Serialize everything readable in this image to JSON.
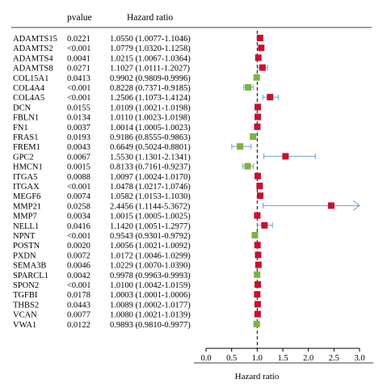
{
  "headers": {
    "pvalue": "pvalue",
    "hazard_ratio": "Hazard ratio"
  },
  "colors": {
    "risk": "#c8102e",
    "protective": "#7cb342",
    "ci_line": "#6a9fd0",
    "axis": "#000000",
    "refline": "#000000"
  },
  "chart_data": {
    "type": "forest",
    "xlabel": "Hazard ratio",
    "xlim": [
      0.0,
      3.0
    ],
    "xticks": [
      "0.0",
      "0.5",
      "1.0",
      "1.5",
      "2.0",
      "2.5",
      "3.0"
    ],
    "reference_line": 1.0,
    "rows": [
      {
        "gene": "ADAMTS15",
        "pvalue": "0.0221",
        "hr_text": "1.0550 (1.0077-1.1046)",
        "hr": 1.055,
        "lower": 1.0077,
        "upper": 1.1046
      },
      {
        "gene": "ADAMTS2",
        "pvalue": "<0.001",
        "hr_text": "1.0779 (1.0320-1.1258)",
        "hr": 1.0779,
        "lower": 1.032,
        "upper": 1.1258
      },
      {
        "gene": "ADAMTS4",
        "pvalue": "0.0041",
        "hr_text": "1.0215 (1.0067-1.0364)",
        "hr": 1.0215,
        "lower": 1.0067,
        "upper": 1.0364
      },
      {
        "gene": "ADAMTS8",
        "pvalue": "0.0271",
        "hr_text": "1.1027 (1.0111-1.2027)",
        "hr": 1.1027,
        "lower": 1.0111,
        "upper": 1.2027
      },
      {
        "gene": "COL15A1",
        "pvalue": "0.0413",
        "hr_text": "0.9902 (0.9809-0.9996)",
        "hr": 0.9902,
        "lower": 0.9809,
        "upper": 0.9996
      },
      {
        "gene": "COL4A4",
        "pvalue": "<0.001",
        "hr_text": "0.8228 (0.7371-0.9185)",
        "hr": 0.8228,
        "lower": 0.7371,
        "upper": 0.9185
      },
      {
        "gene": "COL4A5",
        "pvalue": "<0.001",
        "hr_text": "1.2506 (1.1073-1.4124)",
        "hr": 1.2506,
        "lower": 1.1073,
        "upper": 1.4124
      },
      {
        "gene": "DCN",
        "pvalue": "0.0155",
        "hr_text": "1.0109 (1.0021-1.0198)",
        "hr": 1.0109,
        "lower": 1.0021,
        "upper": 1.0198
      },
      {
        "gene": "FBLN1",
        "pvalue": "0.0134",
        "hr_text": "1.0110 (1.0023-1.0198)",
        "hr": 1.011,
        "lower": 1.0023,
        "upper": 1.0198
      },
      {
        "gene": "FN1",
        "pvalue": "0.0037",
        "hr_text": "1.0014 (1.0005-1.0023)",
        "hr": 1.0014,
        "lower": 1.0005,
        "upper": 1.0023
      },
      {
        "gene": "FRAS1",
        "pvalue": "0.0193",
        "hr_text": "0.9186 (0.8555-0.9863)",
        "hr": 0.9186,
        "lower": 0.8555,
        "upper": 0.9863
      },
      {
        "gene": "FREM1",
        "pvalue": "0.0043",
        "hr_text": "0.6649 (0.5024-0.8801)",
        "hr": 0.6649,
        "lower": 0.5024,
        "upper": 0.8801
      },
      {
        "gene": "GPC2",
        "pvalue": "0.0067",
        "hr_text": "1.5530 (1.1301-2.1341)",
        "hr": 1.553,
        "lower": 1.1301,
        "upper": 2.1341
      },
      {
        "gene": "HMCN1",
        "pvalue": "0.0015",
        "hr_text": "0.8133 (0.7161-0.9237)",
        "hr": 0.8133,
        "lower": 0.7161,
        "upper": 0.9237
      },
      {
        "gene": "ITGA5",
        "pvalue": "0.0088",
        "hr_text": "1.0097 (1.0024-1.0170)",
        "hr": 1.0097,
        "lower": 1.0024,
        "upper": 1.017
      },
      {
        "gene": "ITGAX",
        "pvalue": "<0.001",
        "hr_text": "1.0478 (1.0217-1.0746)",
        "hr": 1.0478,
        "lower": 1.0217,
        "upper": 1.0746
      },
      {
        "gene": "MEGF6",
        "pvalue": "0.0074",
        "hr_text": "1.0582 (1.0153-1.1030)",
        "hr": 1.0582,
        "lower": 1.0153,
        "upper": 1.103
      },
      {
        "gene": "MMP21",
        "pvalue": "0.0258",
        "hr_text": "2.4456 (1.1144-5.3672)",
        "hr": 2.4456,
        "lower": 1.1144,
        "upper": 5.3672
      },
      {
        "gene": "MMP7",
        "pvalue": "0.0034",
        "hr_text": "1.0015 (1.0005-1.0025)",
        "hr": 1.0015,
        "lower": 1.0005,
        "upper": 1.0025
      },
      {
        "gene": "NELL1",
        "pvalue": "0.0416",
        "hr_text": "1.1420 (1.0051-1.2977)",
        "hr": 1.142,
        "lower": 1.0051,
        "upper": 1.2977
      },
      {
        "gene": "NPNT",
        "pvalue": "<0.001",
        "hr_text": "0.9543 (0.9301-0.9792)",
        "hr": 0.9543,
        "lower": 0.9301,
        "upper": 0.9792
      },
      {
        "gene": "POSTN",
        "pvalue": "0.0020",
        "hr_text": "1.0056 (1.0021-1.0092)",
        "hr": 1.0056,
        "lower": 1.0021,
        "upper": 1.0092
      },
      {
        "gene": "PXDN",
        "pvalue": "0.0072",
        "hr_text": "1.0172 (1.0046-1.0299)",
        "hr": 1.0172,
        "lower": 1.0046,
        "upper": 1.0299
      },
      {
        "gene": "SEMA3B",
        "pvalue": "0.0046",
        "hr_text": "1.0229 (1.0070-1.0390)",
        "hr": 1.0229,
        "lower": 1.007,
        "upper": 1.039
      },
      {
        "gene": "SPARCL1",
        "pvalue": "0.0042",
        "hr_text": "0.9978 (0.9963-0.9993)",
        "hr": 0.9978,
        "lower": 0.9963,
        "upper": 0.9993
      },
      {
        "gene": "SPON2",
        "pvalue": "<0.001",
        "hr_text": "1.0100 (1.0042-1.0159)",
        "hr": 1.01,
        "lower": 1.0042,
        "upper": 1.0159
      },
      {
        "gene": "TGFBI",
        "pvalue": "0.0178",
        "hr_text": "1.0003 (1.0001-1.0006)",
        "hr": 1.0003,
        "lower": 1.0001,
        "upper": 1.0006
      },
      {
        "gene": "THBS2",
        "pvalue": "0.0443",
        "hr_text": "1.0089 (1.0002-1.0177)",
        "hr": 1.0089,
        "lower": 1.0002,
        "upper": 1.0177
      },
      {
        "gene": "VCAN",
        "pvalue": "0.0077",
        "hr_text": "1.0080 (1.0021-1.0139)",
        "hr": 1.008,
        "lower": 1.0021,
        "upper": 1.0139
      },
      {
        "gene": "VWA1",
        "pvalue": "0.0122",
        "hr_text": "0.9893 (0.9810-0.9977)",
        "hr": 0.9893,
        "lower": 0.981,
        "upper": 0.9977
      }
    ]
  }
}
